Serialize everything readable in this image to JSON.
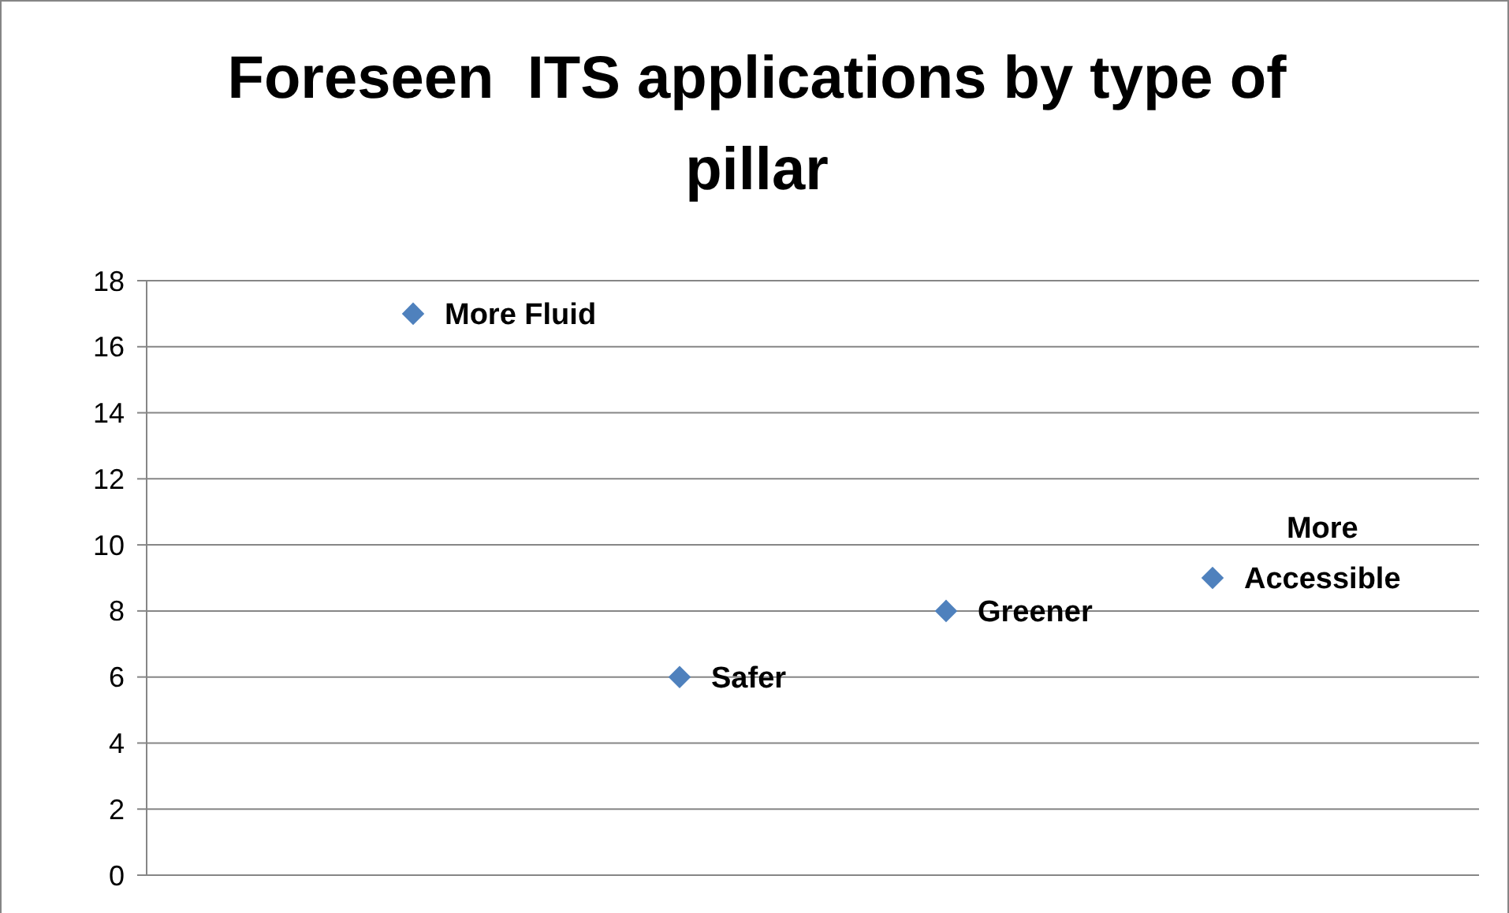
{
  "chart_data": {
    "type": "scatter",
    "title": "Foreseen  ITS applications by type of pillar",
    "categories": [
      null,
      null,
      null,
      null
    ],
    "annotations": [
      "More Fluid",
      "Safer",
      "Greener",
      "More Accessible"
    ],
    "values": [
      17,
      6,
      8,
      9
    ],
    "color": "#4f81bd",
    "marker": "diamond",
    "ylim": [
      0,
      18
    ],
    "yticks": [
      0,
      2,
      4,
      6,
      8,
      10,
      12,
      14,
      16,
      18
    ],
    "grid": "y"
  }
}
